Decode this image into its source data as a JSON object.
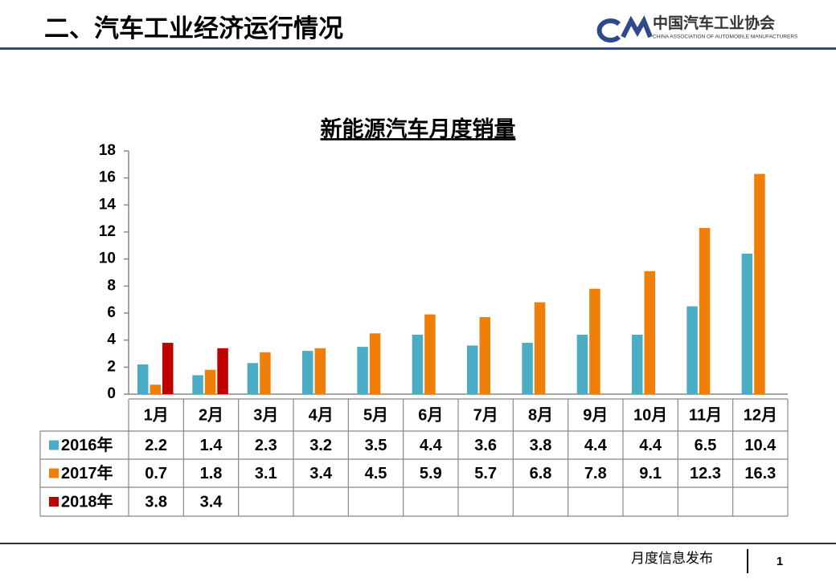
{
  "header": {
    "title": "二、汽车工业经济运行情况",
    "logo_cn": "中国汽车工业协会",
    "logo_en": "CHINA ASSOCIATION OF AUTOMOBILE MANUFACTURERS"
  },
  "footer": {
    "text": "月度信息发布",
    "page": "1"
  },
  "chart_data": {
    "type": "bar",
    "title": "新能源汽车月度销量",
    "categories": [
      "1月",
      "2月",
      "3月",
      "4月",
      "5月",
      "6月",
      "7月",
      "8月",
      "9月",
      "10月",
      "11月",
      "12月"
    ],
    "series": [
      {
        "name": "2016年",
        "color": "#4bacc6",
        "values": [
          2.2,
          1.4,
          2.3,
          3.2,
          3.5,
          4.4,
          3.6,
          3.8,
          4.4,
          4.4,
          6.5,
          10.4
        ]
      },
      {
        "name": "2017年",
        "color": "#f07f09",
        "values": [
          0.7,
          1.8,
          3.1,
          3.4,
          4.5,
          5.9,
          5.7,
          6.8,
          7.8,
          9.1,
          12.3,
          16.3
        ]
      },
      {
        "name": "2018年",
        "color": "#c00000",
        "values": [
          3.8,
          3.4,
          null,
          null,
          null,
          null,
          null,
          null,
          null,
          null,
          null,
          null
        ]
      }
    ],
    "ylim": [
      0,
      18
    ],
    "yticks": [
      0,
      2,
      4,
      6,
      8,
      10,
      12,
      14,
      16,
      18
    ],
    "grid": false
  }
}
